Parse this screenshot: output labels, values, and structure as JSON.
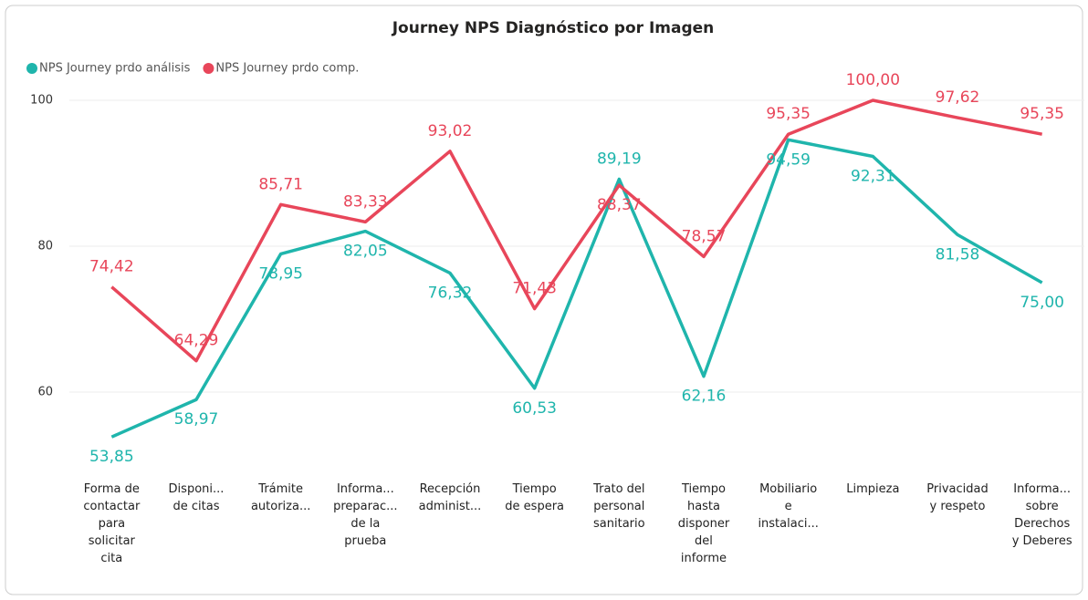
{
  "chart_data": {
    "type": "line",
    "title": "Journey NPS Diagnóstico por Imagen",
    "categories": [
      "Forma de\ncontactar\npara\nsolicitar\ncita",
      "Disponi...\nde citas",
      "Trámite\nautoriza...",
      "Informa...\npreparac...\nde la\nprueba",
      "Recepción\nadminist...",
      "Tiempo\nde espera",
      "Trato del\npersonal\nsanitario",
      "Tiempo\nhasta\ndisponer\ndel\ninforme",
      "Mobiliario\ne\ninstalaci...",
      "Limpieza",
      "Privacidad\ny respeto",
      "Informa...\nsobre\nDerechos\ny Deberes"
    ],
    "series": [
      {
        "name": "NPS Journey prdo análisis",
        "color": "#1fb5ac",
        "values": [
          53.85,
          58.97,
          78.95,
          82.05,
          76.32,
          60.53,
          89.19,
          62.16,
          94.59,
          92.31,
          81.58,
          75.0
        ],
        "value_labels": [
          "53,85",
          "58,97",
          "78,95",
          "82,05",
          "76,32",
          "60,53",
          "89,19",
          "62,16",
          "94,59",
          "92,31",
          "81,58",
          "75,00"
        ]
      },
      {
        "name": "NPS Journey prdo comp.",
        "color": "#e8465a",
        "values": [
          74.42,
          64.29,
          85.71,
          83.33,
          93.02,
          71.43,
          88.37,
          78.57,
          95.35,
          100.0,
          97.62,
          95.35
        ],
        "value_labels": [
          "74,42",
          "64,29",
          "85,71",
          "83,33",
          "93,02",
          "71,43",
          "88,37",
          "78,57",
          "95,35",
          "100,00",
          "97,62",
          "95,35"
        ]
      }
    ],
    "ylim": [
      52,
      100
    ],
    "yticks": [
      60,
      80,
      100
    ],
    "grid": true,
    "legend": "top-left"
  }
}
